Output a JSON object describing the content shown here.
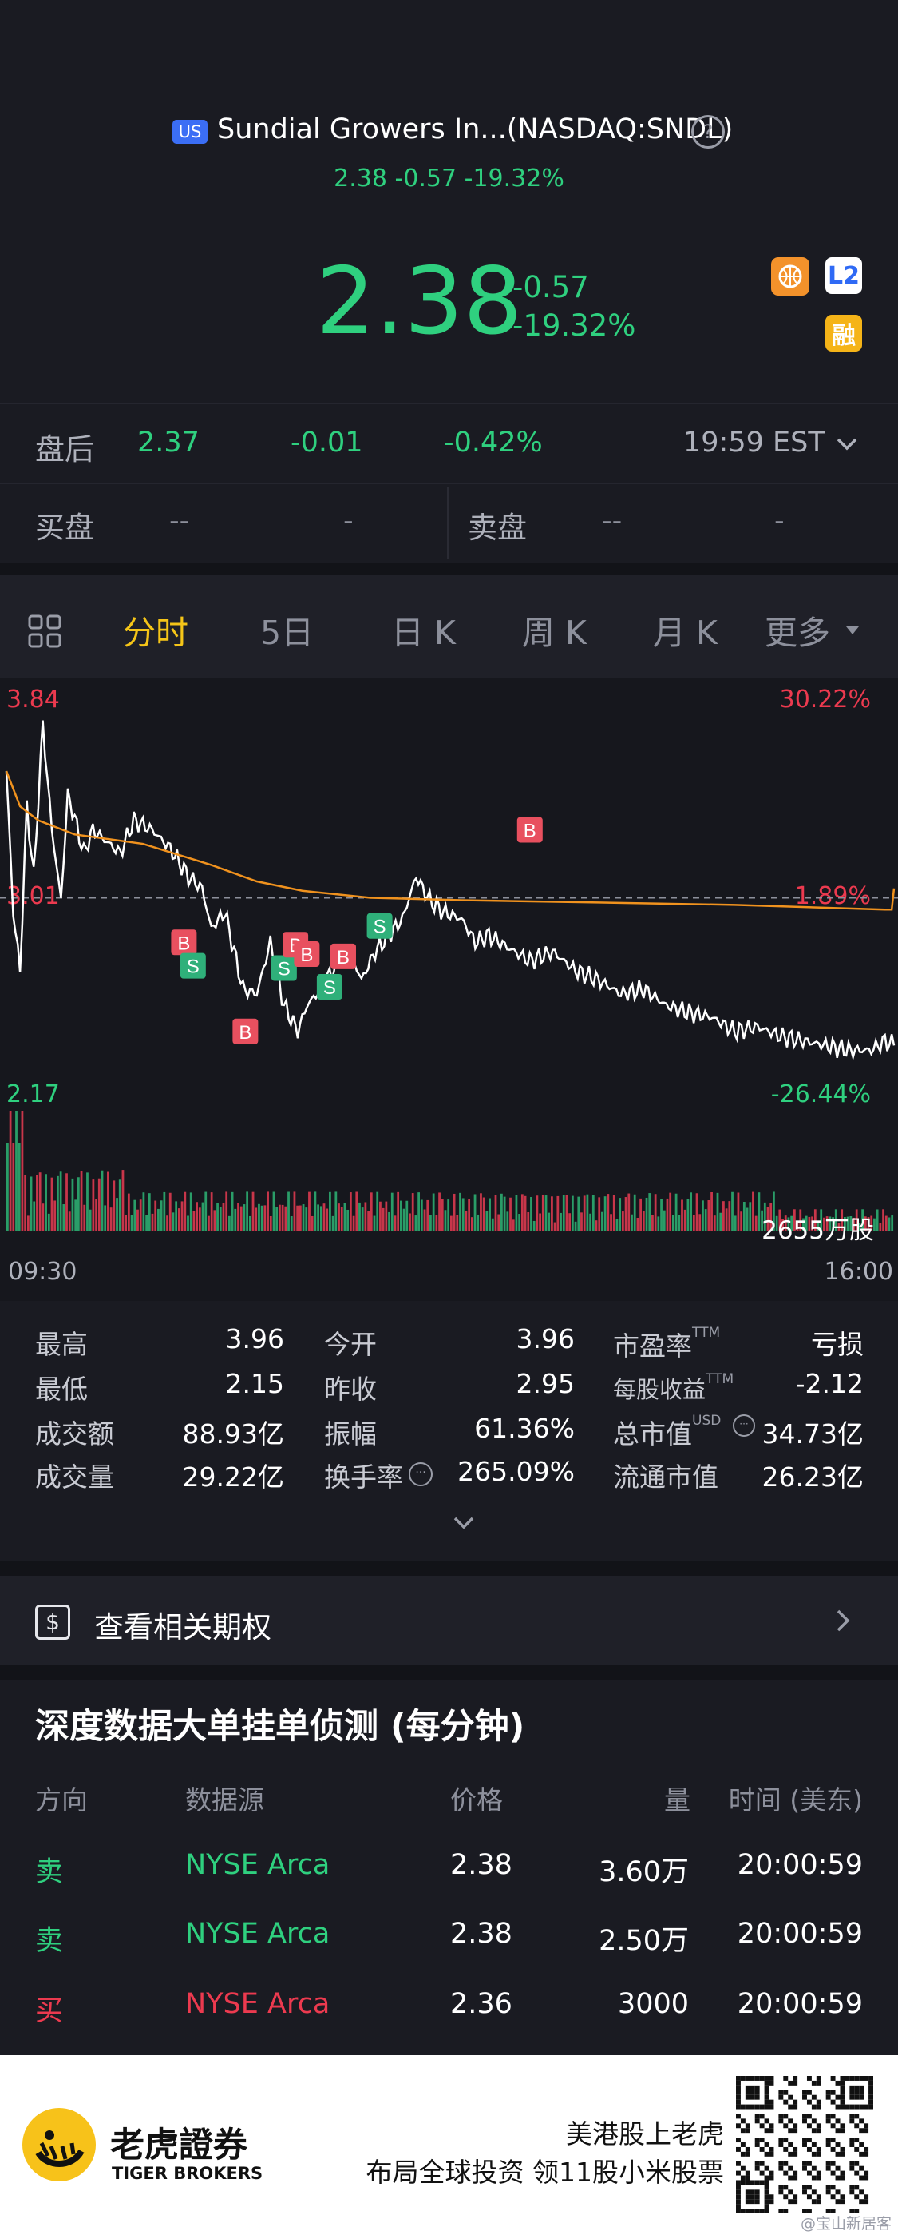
{
  "header": {
    "market_badge": "US",
    "name": "Sundial Growers In...(NASDAQ:SNDL)",
    "summary": "2.38 -0.57 -19.32%",
    "price": "2.38",
    "change": "-0.57",
    "change_pct": "-19.32%",
    "badge_l2": "L2",
    "badge_margin": "融"
  },
  "after_hours": {
    "label": "盘后",
    "price": "2.37",
    "change": "-0.01",
    "change_pct": "-0.42%",
    "time": "19:59 EST"
  },
  "bid_ask": {
    "bid_label": "买盘",
    "bid_price": "--",
    "bid_size": "-",
    "ask_label": "卖盘",
    "ask_price": "--",
    "ask_size": "-"
  },
  "tabs": {
    "items": [
      "分时",
      "5日",
      "日 K",
      "周 K",
      "月 K",
      "更多"
    ],
    "active": "分时"
  },
  "chart_data": {
    "type": "line",
    "y_high_label": "3.84",
    "y_mid_label": "3.01",
    "y_low_label": "2.17",
    "pct_high_label": "30.22%",
    "pct_mid_label": "1.89%",
    "pct_low_label": "-26.44%",
    "x_start_label": "09:30",
    "x_end_label": "16:00",
    "volume_label": "2655万股",
    "ylim": [
      2.17,
      3.84
    ],
    "prev_close": 2.95,
    "trade_markers": [
      {
        "type": "B",
        "time": "13:20",
        "price": 3.3
      },
      {
        "type": "B",
        "time": "10:48",
        "price": 2.82
      },
      {
        "type": "S",
        "time": "10:52",
        "price": 2.72
      },
      {
        "type": "B",
        "time": "11:15",
        "price": 2.44
      },
      {
        "type": "S",
        "time": "11:32",
        "price": 2.71
      },
      {
        "type": "B",
        "time": "11:37",
        "price": 2.81
      },
      {
        "type": "B",
        "time": "11:42",
        "price": 2.77
      },
      {
        "type": "S",
        "time": "11:52",
        "price": 2.63
      },
      {
        "type": "B",
        "time": "11:58",
        "price": 2.76
      },
      {
        "type": "S",
        "time": "12:14",
        "price": 2.89
      }
    ]
  },
  "stats": {
    "high_label": "最高",
    "high": "3.96",
    "low_label": "最低",
    "low": "2.15",
    "turnover_label": "成交额",
    "turnover": "88.93亿",
    "volume_label": "成交量",
    "volume": "29.22亿",
    "open_label": "今开",
    "open": "3.96",
    "prev_close_label": "昨收",
    "prev_close": "2.95",
    "amplitude_label": "振幅",
    "amplitude": "61.36%",
    "turnover_rate_label": "换手率",
    "turnover_rate": "265.09%",
    "pe_label": "市盈率",
    "pe_sup": "TTM",
    "pe": "亏损",
    "eps_label": "每股收益",
    "eps_sup": "TTM",
    "eps": "-2.12",
    "mcap_label": "总市值",
    "mcap_sup": "USD",
    "mcap": "34.73亿",
    "float_mcap_label": "流通市值",
    "float_mcap": "26.23亿"
  },
  "options_link": {
    "label": "查看相关期权"
  },
  "orders": {
    "title": "深度数据大单挂单侦测 (每分钟)",
    "headers": [
      "方向",
      "数据源",
      "价格",
      "量",
      "时间 (美东)"
    ],
    "rows": [
      {
        "side": "卖",
        "source": "NYSE Arca",
        "price": "2.38",
        "qty": "3.60万",
        "time": "20:00:59"
      },
      {
        "side": "卖",
        "source": "NYSE Arca",
        "price": "2.38",
        "qty": "2.50万",
        "time": "20:00:59"
      },
      {
        "side": "买",
        "source": "NYSE Arca",
        "price": "2.36",
        "qty": "3000",
        "time": "20:00:59"
      }
    ]
  },
  "footer": {
    "brand_cn": "老虎證券",
    "brand_en": "TIGER BROKERS",
    "slogan1": "美港股上老虎",
    "slogan2": "布局全球投资 领11股小米股票",
    "watermark": "@宝山新居客"
  },
  "colors": {
    "up": "#ec3a4f",
    "down": "#2fd07f",
    "accent": "#f5c518",
    "avg_line": "#f0921e"
  }
}
